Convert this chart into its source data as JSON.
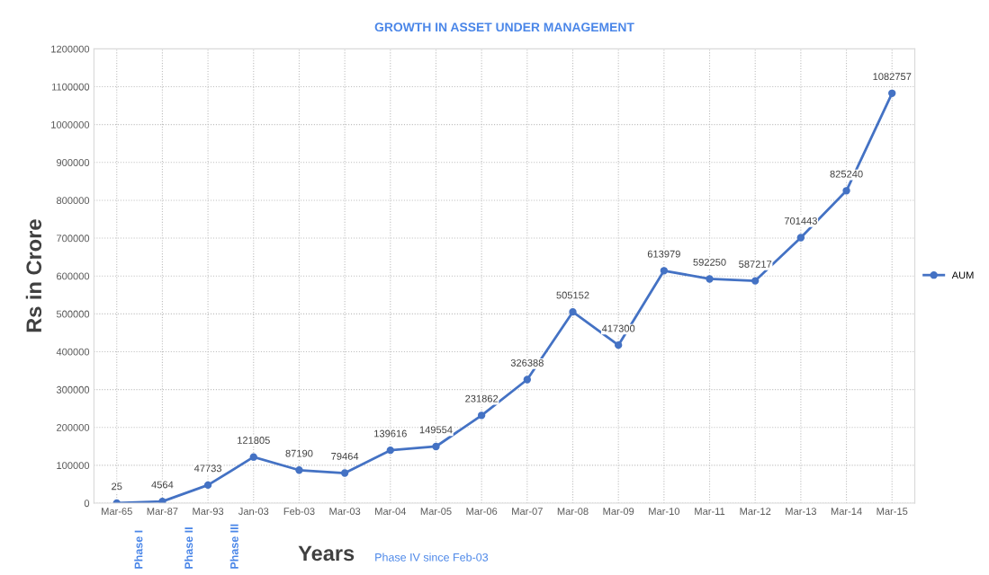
{
  "chart_data": {
    "type": "line",
    "title": "GROWTH IN ASSET UNDER MANAGEMENT",
    "xlabel": "Years",
    "ylabel": "Rs in Crore",
    "categories": [
      "Mar-65",
      "Mar-87",
      "Mar-93",
      "Jan-03",
      "Feb-03",
      "Mar-03",
      "Mar-04",
      "Mar-05",
      "Mar-06",
      "Mar-07",
      "Mar-08",
      "Mar-09",
      "Mar-10",
      "Mar-11",
      "Mar-12",
      "Mar-13",
      "Mar-14",
      "Mar-15"
    ],
    "series": [
      {
        "name": "AUM",
        "color": "#4472c4",
        "values": [
          25,
          4564,
          47733,
          121805,
          87190,
          79464,
          139616,
          149554,
          231862,
          326388,
          505152,
          417300,
          613979,
          592250,
          587217,
          701443,
          825240,
          1082757
        ]
      }
    ],
    "ylim": [
      0,
      1200000
    ],
    "yticks": [
      0,
      100000,
      200000,
      300000,
      400000,
      500000,
      600000,
      700000,
      800000,
      900000,
      1000000,
      1100000,
      1200000
    ],
    "grid": true,
    "legend": "right",
    "marker": "circle",
    "line_style": "solid",
    "data_labels": true,
    "annotations": [
      "Phase I",
      "Phase II",
      "Phase III",
      "Phase IV since Feb-03"
    ]
  }
}
